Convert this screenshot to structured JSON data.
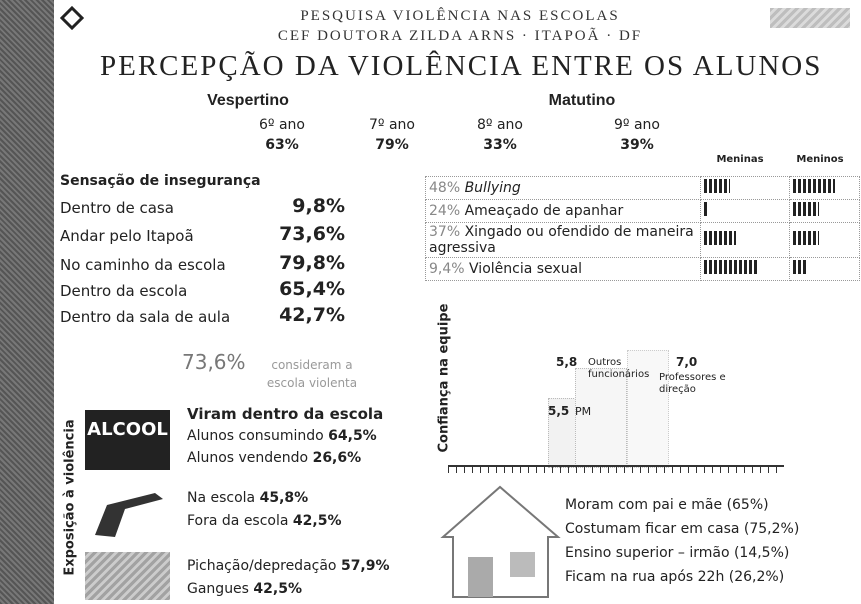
{
  "header": {
    "title": "PESQUISA VIOLÊNCIA NAS ESCOLAS",
    "subtitle": "CEF DOUTORA ZILDA ARNS · ITAPOÃ · DF",
    "main_title": "PERCEPÇÃO DA VIOLÊNCIA ENTRE OS ALUNOS"
  },
  "shifts": [
    {
      "name": "Vespertino",
      "grades": [
        {
          "grade": "6º ano",
          "value": "63%"
        },
        {
          "grade": "7º ano",
          "value": "79%"
        }
      ]
    },
    {
      "name": "Matutino",
      "grades": [
        {
          "grade": "8º ano",
          "value": "33%"
        },
        {
          "grade": "9º ano",
          "value": "39%"
        }
      ]
    }
  ],
  "insecurity": {
    "title": "Sensação de insegurança",
    "items": [
      {
        "label": "Dentro de casa",
        "value": "9,8%"
      },
      {
        "label": "Andar pelo Itapoã",
        "value": "73,6%"
      },
      {
        "label": "No caminho da escola",
        "value": "79,8%"
      },
      {
        "label": "Dentro da escola",
        "value": "65,4%"
      },
      {
        "label": "Dentro da sala de aula",
        "value": "42,7%"
      }
    ]
  },
  "violent_school": {
    "value": "73,6%",
    "text": "consideram a escola violenta"
  },
  "table": {
    "headers": [
      "Meninas",
      "Meninos"
    ],
    "rows": [
      {
        "pct": "48%",
        "label": "Bullying"
      },
      {
        "pct": "24%",
        "label": "Ameaçado de apanhar"
      },
      {
        "pct": "37%",
        "label": "Xingado ou ofendido de maneira agressiva"
      },
      {
        "pct": "9,4%",
        "label": "Violência sexual"
      }
    ]
  },
  "trust": {
    "axis_label": "Confiança na equipe",
    "bars": [
      {
        "value": "5,5",
        "label": "PM"
      },
      {
        "value": "5,8",
        "label": "Outros funcionários"
      },
      {
        "value": "7,0",
        "label": "Professores e direção"
      }
    ]
  },
  "exposure": {
    "label": "Exposição à violência",
    "image_text": "ALCOOL",
    "groups": [
      {
        "title": "Viram dentro da escola",
        "lines": [
          {
            "label": "Alunos consumindo",
            "value": "64,5%"
          },
          {
            "label": "Alunos vendendo",
            "value": "26,6%"
          }
        ]
      },
      {
        "lines": [
          {
            "label": "Na escola",
            "value": "45,8%"
          },
          {
            "label": "Fora da escola",
            "value": "42,5%"
          }
        ]
      },
      {
        "lines": [
          {
            "label": "Pichação/depredação",
            "value": "57,9%"
          },
          {
            "label": "Gangues",
            "value": "42,5%"
          }
        ]
      }
    ]
  },
  "family": [
    "Moram com pai e mãe (65%)",
    "Costumam ficar em casa (75,2%)",
    "Ensino superior – irmão (14,5%)",
    "Ficam na rua após 22h (26,2%)"
  ]
}
